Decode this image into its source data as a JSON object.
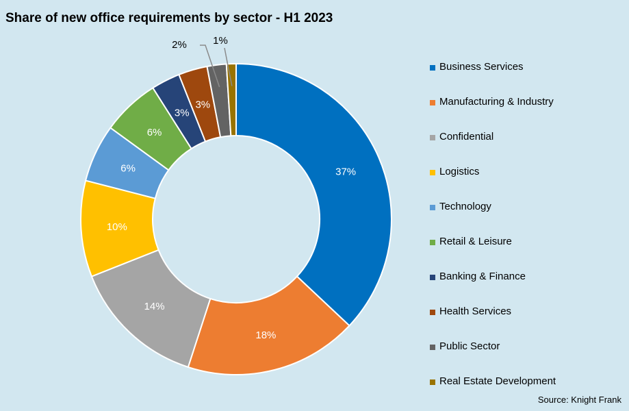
{
  "title": "Share of new office requirements by sector - H1 2023",
  "source": "Source: Knight Frank",
  "chart_data": {
    "type": "pie",
    "donut": true,
    "title": "Share of new office requirements by sector - H1 2023",
    "legend_position": "right",
    "slices": [
      {
        "label": "Business Services",
        "value": 37,
        "display": "37%",
        "color": "#0070c0",
        "label_color": "#ffffff"
      },
      {
        "label": "Manufacturing & Industry",
        "value": 18,
        "display": "18%",
        "color": "#ed7d31",
        "label_color": "#ffffff"
      },
      {
        "label": "Confidential",
        "value": 14,
        "display": "14%",
        "color": "#a5a5a5",
        "label_color": "#ffffff"
      },
      {
        "label": "Logistics",
        "value": 10,
        "display": "10%",
        "color": "#ffc000",
        "label_color": "#ffffff"
      },
      {
        "label": "Technology",
        "value": 6,
        "display": "6%",
        "color": "#5b9bd5",
        "label_color": "#ffffff"
      },
      {
        "label": "Retail & Leisure",
        "value": 6,
        "display": "6%",
        "color": "#70ad47",
        "label_color": "#ffffff"
      },
      {
        "label": "Banking & Finance",
        "value": 3,
        "display": "3%",
        "color": "#264478",
        "label_color": "#ffffff"
      },
      {
        "label": "Health Services",
        "value": 3,
        "display": "3%",
        "color": "#9e480e",
        "label_color": "#ffffff"
      },
      {
        "label": "Public Sector",
        "value": 2,
        "display": "2%",
        "color": "#636363",
        "label_color": "#000000"
      },
      {
        "label": "Real Estate Development",
        "value": 1,
        "display": "1%",
        "color": "#997300",
        "label_color": "#000000"
      }
    ]
  }
}
